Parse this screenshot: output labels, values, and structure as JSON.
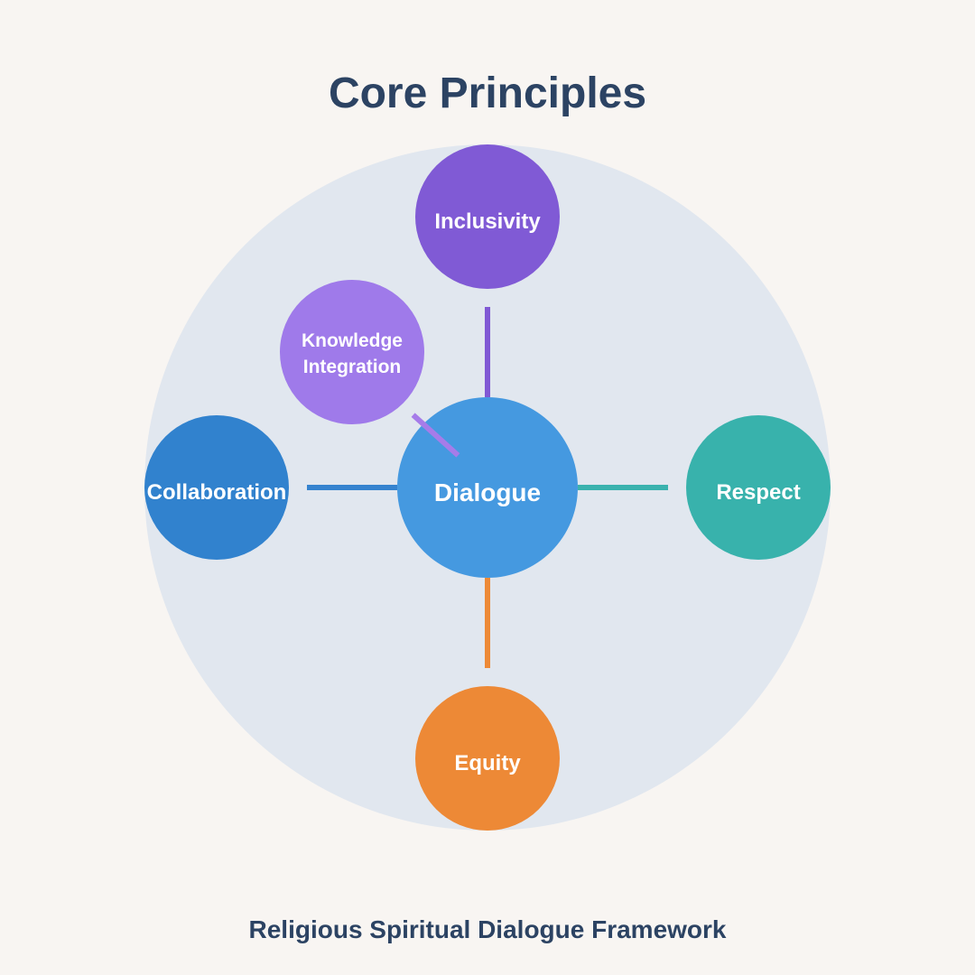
{
  "title": "Core Principles",
  "footer": "Religious Spiritual Dialogue Framework",
  "center": {
    "label": "Dialogue",
    "color": "#4599e0"
  },
  "principles": {
    "top": {
      "label": "Inclusivity",
      "color": "#805ad5"
    },
    "upper_left": {
      "label": "Knowledge\nIntegration",
      "color": "#9f7aea"
    },
    "left": {
      "label": "Collaboration",
      "color": "#3182ce"
    },
    "right": {
      "label": "Respect",
      "color": "#38b2ac"
    },
    "bottom": {
      "label": "Equity",
      "color": "#ed8936"
    }
  },
  "backdrop_color": "#e1e7ef",
  "background_color": "#f8f5f2",
  "text_color": "#2c4363"
}
